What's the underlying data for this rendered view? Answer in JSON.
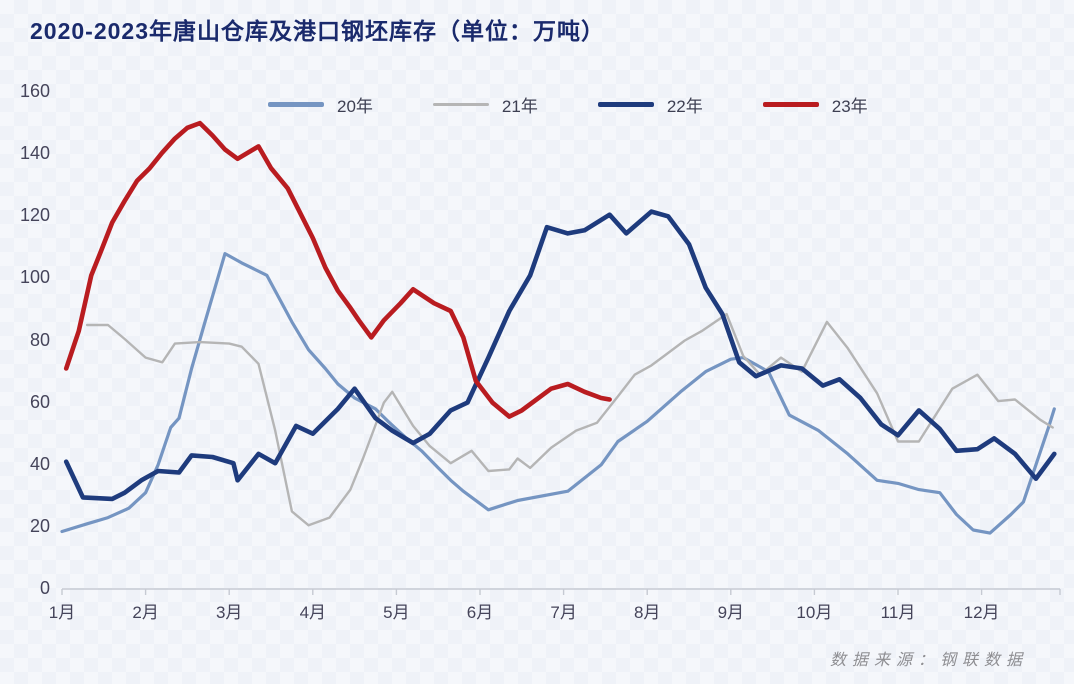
{
  "title": "2020-2023年唐山仓库及港口钢坯库存（单位：万吨）",
  "source_note": "数据来源：钢联数据",
  "colors": {
    "title": "#1a2a6c",
    "axis_text": "#45445a",
    "axis_line": "#c6cad3",
    "background": "#f5f7fb",
    "series_20": "#7595c2",
    "series_21": "#b5b5b5",
    "series_22": "#1e3b7d",
    "series_23": "#b91c20"
  },
  "chart_data": {
    "type": "line",
    "title": "2020-2023年唐山仓库及港口钢坯库存（单位：万吨）",
    "unit": "万吨",
    "grid": false,
    "legend_position": "top",
    "x_axis": {
      "labels": [
        "1月",
        "2月",
        "3月",
        "4月",
        "5月",
        "6月",
        "7月",
        "8月",
        "9月",
        "10月",
        "11月",
        "12月"
      ],
      "range": [
        1,
        13
      ]
    },
    "y_axis": {
      "ticks": [
        0,
        20,
        40,
        60,
        80,
        100,
        120,
        140,
        160
      ],
      "range": [
        0,
        160
      ]
    },
    "series": [
      {
        "name": "20年",
        "color": "#7595c2",
        "width": 3.2,
        "points": [
          [
            1.0,
            18.5
          ],
          [
            1.3,
            21
          ],
          [
            1.55,
            23
          ],
          [
            1.8,
            26
          ],
          [
            2.0,
            31
          ],
          [
            2.15,
            40
          ],
          [
            2.3,
            52
          ],
          [
            2.4,
            55
          ],
          [
            2.55,
            71
          ],
          [
            2.7,
            85
          ],
          [
            2.95,
            108
          ],
          [
            3.15,
            105
          ],
          [
            3.45,
            101
          ],
          [
            3.75,
            86
          ],
          [
            3.95,
            77
          ],
          [
            4.15,
            71
          ],
          [
            4.3,
            66
          ],
          [
            4.5,
            61.5
          ],
          [
            4.75,
            58
          ],
          [
            4.9,
            54
          ],
          [
            5.1,
            49
          ],
          [
            5.3,
            44.5
          ],
          [
            5.5,
            39
          ],
          [
            5.65,
            35
          ],
          [
            5.8,
            31.5
          ],
          [
            6.1,
            25.5
          ],
          [
            6.45,
            28.5
          ],
          [
            7.05,
            31.5
          ],
          [
            7.45,
            40
          ],
          [
            7.65,
            47.5
          ],
          [
            8.0,
            54
          ],
          [
            8.4,
            63.5
          ],
          [
            8.7,
            70
          ],
          [
            9.0,
            74
          ],
          [
            9.15,
            74.5
          ],
          [
            9.45,
            70
          ],
          [
            9.7,
            56
          ],
          [
            10.05,
            51
          ],
          [
            10.4,
            43.5
          ],
          [
            10.75,
            35
          ],
          [
            11.0,
            34
          ],
          [
            11.25,
            32
          ],
          [
            11.5,
            31
          ],
          [
            11.7,
            24
          ],
          [
            11.9,
            19
          ],
          [
            12.1,
            18
          ],
          [
            12.35,
            24
          ],
          [
            12.5,
            28
          ],
          [
            12.8,
            52
          ],
          [
            12.87,
            58
          ]
        ]
      },
      {
        "name": "21年",
        "color": "#b5b5b5",
        "width": 2.4,
        "points": [
          [
            1.3,
            85
          ],
          [
            1.55,
            85
          ],
          [
            1.75,
            80.5
          ],
          [
            2.0,
            74.5
          ],
          [
            2.2,
            73
          ],
          [
            2.35,
            79
          ],
          [
            2.65,
            79.5
          ],
          [
            3.0,
            79
          ],
          [
            3.15,
            78
          ],
          [
            3.35,
            72.5
          ],
          [
            3.55,
            51
          ],
          [
            3.75,
            25
          ],
          [
            3.95,
            20.5
          ],
          [
            4.2,
            23
          ],
          [
            4.45,
            32
          ],
          [
            4.6,
            42
          ],
          [
            4.85,
            60
          ],
          [
            4.95,
            63.5
          ],
          [
            5.2,
            52.5
          ],
          [
            5.4,
            46
          ],
          [
            5.65,
            40.5
          ],
          [
            5.9,
            44.5
          ],
          [
            6.1,
            38
          ],
          [
            6.35,
            38.5
          ],
          [
            6.45,
            42
          ],
          [
            6.6,
            39
          ],
          [
            6.85,
            45.5
          ],
          [
            7.15,
            51
          ],
          [
            7.4,
            53.5
          ],
          [
            7.65,
            62
          ],
          [
            7.85,
            69
          ],
          [
            8.05,
            72
          ],
          [
            8.2,
            75
          ],
          [
            8.45,
            80
          ],
          [
            8.65,
            83
          ],
          [
            8.95,
            88.5
          ],
          [
            9.15,
            75
          ],
          [
            9.35,
            69
          ],
          [
            9.6,
            74.5
          ],
          [
            9.85,
            70
          ],
          [
            10.15,
            86
          ],
          [
            10.4,
            77.5
          ],
          [
            10.75,
            63
          ],
          [
            11.0,
            47.5
          ],
          [
            11.25,
            47.5
          ],
          [
            11.65,
            64.5
          ],
          [
            11.95,
            69
          ],
          [
            12.2,
            60.5
          ],
          [
            12.4,
            61
          ],
          [
            12.7,
            54.5
          ],
          [
            12.85,
            52
          ]
        ]
      },
      {
        "name": "22年",
        "color": "#1e3b7d",
        "width": 4.6,
        "points": [
          [
            1.05,
            41
          ],
          [
            1.25,
            29.5
          ],
          [
            1.6,
            29
          ],
          [
            1.75,
            31
          ],
          [
            1.95,
            35
          ],
          [
            2.15,
            38
          ],
          [
            2.4,
            37.5
          ],
          [
            2.55,
            43
          ],
          [
            2.8,
            42.5
          ],
          [
            3.05,
            40.5
          ],
          [
            3.1,
            35
          ],
          [
            3.35,
            43.5
          ],
          [
            3.55,
            40.5
          ],
          [
            3.8,
            52.5
          ],
          [
            4.0,
            50
          ],
          [
            4.3,
            58
          ],
          [
            4.5,
            64.5
          ],
          [
            4.75,
            55
          ],
          [
            4.95,
            51
          ],
          [
            5.2,
            47
          ],
          [
            5.4,
            50
          ],
          [
            5.65,
            57.5
          ],
          [
            5.85,
            60
          ],
          [
            6.1,
            74.5
          ],
          [
            6.35,
            89.5
          ],
          [
            6.6,
            101
          ],
          [
            6.8,
            116.5
          ],
          [
            7.05,
            114.5
          ],
          [
            7.25,
            115.5
          ],
          [
            7.55,
            120.5
          ],
          [
            7.75,
            114.5
          ],
          [
            8.05,
            121.5
          ],
          [
            8.25,
            120
          ],
          [
            8.5,
            111
          ],
          [
            8.7,
            97
          ],
          [
            8.9,
            88.5
          ],
          [
            9.1,
            73
          ],
          [
            9.3,
            68.5
          ],
          [
            9.6,
            72
          ],
          [
            9.85,
            71
          ],
          [
            10.1,
            65.5
          ],
          [
            10.3,
            67.5
          ],
          [
            10.55,
            61.5
          ],
          [
            10.8,
            53
          ],
          [
            11.0,
            49.5
          ],
          [
            11.25,
            57.5
          ],
          [
            11.5,
            51.5
          ],
          [
            11.7,
            44.5
          ],
          [
            11.95,
            45
          ],
          [
            12.15,
            48.5
          ],
          [
            12.4,
            43.5
          ],
          [
            12.65,
            35.5
          ],
          [
            12.87,
            43.5
          ]
        ]
      },
      {
        "name": "23年",
        "color": "#b91c20",
        "width": 4.6,
        "points": [
          [
            1.05,
            71
          ],
          [
            1.2,
            83
          ],
          [
            1.35,
            101
          ],
          [
            1.47,
            109
          ],
          [
            1.6,
            118
          ],
          [
            1.75,
            125
          ],
          [
            1.9,
            131.5
          ],
          [
            2.05,
            135.5
          ],
          [
            2.2,
            140.5
          ],
          [
            2.35,
            145
          ],
          [
            2.5,
            148.5
          ],
          [
            2.65,
            150
          ],
          [
            2.8,
            146
          ],
          [
            2.95,
            141.5
          ],
          [
            3.1,
            138.5
          ],
          [
            3.35,
            142.5
          ],
          [
            3.5,
            135.5
          ],
          [
            3.7,
            129
          ],
          [
            3.85,
            121
          ],
          [
            4.0,
            113
          ],
          [
            4.15,
            103.5
          ],
          [
            4.3,
            96
          ],
          [
            4.45,
            90.5
          ],
          [
            4.55,
            86.5
          ],
          [
            4.7,
            81
          ],
          [
            4.85,
            86.5
          ],
          [
            5.05,
            92
          ],
          [
            5.2,
            96.5
          ],
          [
            5.45,
            92
          ],
          [
            5.65,
            89.5
          ],
          [
            5.8,
            81
          ],
          [
            5.95,
            67
          ],
          [
            6.15,
            60
          ],
          [
            6.35,
            55.5
          ],
          [
            6.5,
            57.5
          ],
          [
            6.65,
            60.5
          ],
          [
            6.85,
            64.5
          ],
          [
            7.05,
            66
          ],
          [
            7.25,
            63.5
          ],
          [
            7.45,
            61.5
          ],
          [
            7.55,
            61
          ]
        ]
      }
    ]
  }
}
